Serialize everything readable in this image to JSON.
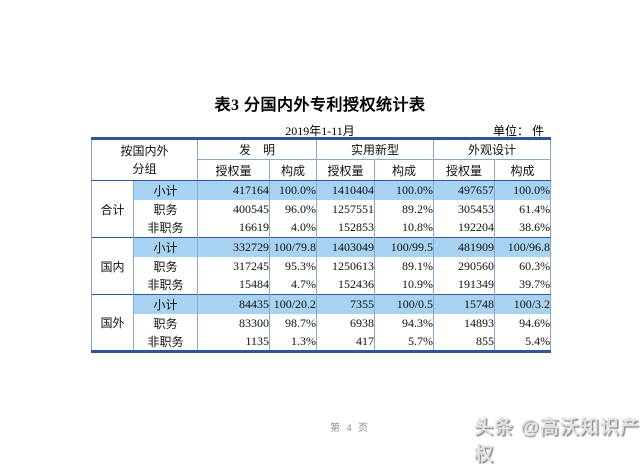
{
  "page": {
    "title": "表3  分国内外专利授权统计表",
    "period": "2019年1-11月",
    "unit_label": "单位：  件",
    "page_number": "第 4 页",
    "watermark": "头条 @高沃知识产权"
  },
  "colors": {
    "border_strong": "#2d5597",
    "border_light": "#8ba6cd",
    "highlight_row": "#a8d2f2",
    "watermark_gray": "#8f8f8f"
  },
  "table": {
    "corner_header": [
      "按国内外",
      "分组"
    ],
    "column_groups": [
      {
        "label": "发　明",
        "sub": [
          "授权量",
          "构成"
        ]
      },
      {
        "label": "实用新型",
        "sub": [
          "授权量",
          "构成"
        ]
      },
      {
        "label": "外观设计",
        "sub": [
          "授权量",
          "构成"
        ]
      }
    ],
    "sections": [
      {
        "group": "合计",
        "rows": [
          {
            "label": "小计",
            "highlight": true,
            "values": [
              "417164",
              "100.0%",
              "1410404",
              "100.0%",
              "497657",
              "100.0%"
            ]
          },
          {
            "label": "职务",
            "highlight": false,
            "values": [
              "400545",
              "96.0%",
              "1257551",
              "89.2%",
              "305453",
              "61.4%"
            ]
          },
          {
            "label": "非职务",
            "highlight": false,
            "values": [
              "16619",
              "4.0%",
              "152853",
              "10.8%",
              "192204",
              "38.6%"
            ]
          }
        ]
      },
      {
        "group": "国内",
        "rows": [
          {
            "label": "小计",
            "highlight": true,
            "values": [
              "332729",
              "100/79.8",
              "1403049",
              "100/99.5",
              "481909",
              "100/96.8"
            ]
          },
          {
            "label": "职务",
            "highlight": false,
            "values": [
              "317245",
              "95.3%",
              "1250613",
              "89.1%",
              "290560",
              "60.3%"
            ]
          },
          {
            "label": "非职务",
            "highlight": false,
            "values": [
              "15484",
              "4.7%",
              "152436",
              "10.9%",
              "191349",
              "39.7%"
            ]
          }
        ]
      },
      {
        "group": "国外",
        "rows": [
          {
            "label": "小计",
            "highlight": true,
            "values": [
              "84435",
              "100/20.2",
              "7355",
              "100/0.5",
              "15748",
              "100/3.2"
            ]
          },
          {
            "label": "职务",
            "highlight": false,
            "values": [
              "83300",
              "98.7%",
              "6938",
              "94.3%",
              "14893",
              "94.6%"
            ]
          },
          {
            "label": "非职务",
            "highlight": false,
            "values": [
              "1135",
              "1.3%",
              "417",
              "5.7%",
              "855",
              "5.4%"
            ]
          }
        ]
      }
    ]
  }
}
